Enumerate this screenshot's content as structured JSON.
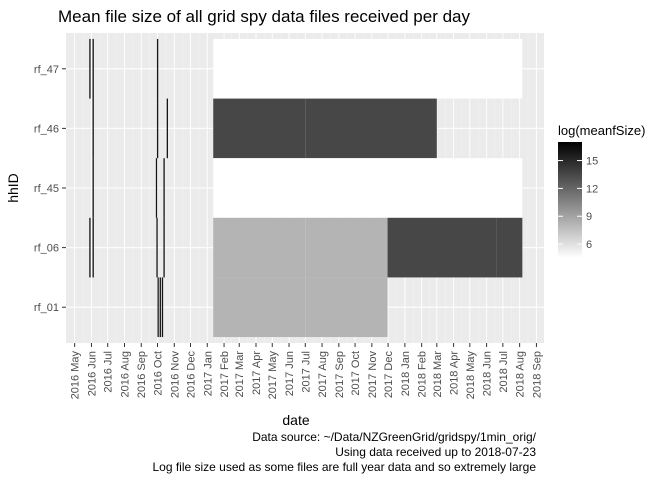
{
  "chart_data": {
    "type": "heatmap",
    "title": "Mean file size of all grid spy data files received per day",
    "xlabel": "date",
    "ylabel": "hhID",
    "categories": [
      "rf_47",
      "rf_46",
      "rf_45",
      "rf_06",
      "rf_01"
    ],
    "xlim": [
      "2016-04-15",
      "2018-09-15"
    ],
    "x_ticks": [
      "2016 May",
      "2016 Jun",
      "2016 Jul",
      "2016 Aug",
      "2016 Sep",
      "2016 Oct",
      "2016 Nov",
      "2016 Dec",
      "2017 Jan",
      "2017 Feb",
      "2017 Mar",
      "2017 Apr",
      "2017 May",
      "2017 Jun",
      "2017 Jul",
      "2017 Aug",
      "2017 Sep",
      "2017 Oct",
      "2017 Nov",
      "2017 Dec",
      "2018 Jan",
      "2018 Feb",
      "2018 Mar",
      "2018 Apr",
      "2018 May",
      "2018 Jun",
      "2018 Jul",
      "2018 Aug",
      "2018 Sep"
    ],
    "legend": {
      "title": "log(meanfSize)",
      "position": "right",
      "range": [
        4.5,
        17
      ],
      "ticks": [
        6,
        9,
        12,
        15
      ],
      "low_color": "#ffffff",
      "high_color": "#000000"
    },
    "grid": true,
    "cells": [
      {
        "hh": "rf_47",
        "start": "2016-05-28",
        "end": "2016-05-29",
        "value": 16
      },
      {
        "hh": "rf_47",
        "start": "2016-06-03",
        "end": "2016-06-04",
        "value": 16
      },
      {
        "hh": "rf_47",
        "start": "2016-09-30",
        "end": "2016-10-01",
        "value": 16
      },
      {
        "hh": "rf_47",
        "start": "2017-01-12",
        "end": "2017-07-01",
        "value": 4.5
      },
      {
        "hh": "rf_47",
        "start": "2017-07-01",
        "end": "2018-08-06",
        "value": 4.5
      },
      {
        "hh": "rf_46",
        "start": "2016-06-03",
        "end": "2016-06-04",
        "value": 16
      },
      {
        "hh": "rf_46",
        "start": "2016-09-30",
        "end": "2016-10-01",
        "value": 16
      },
      {
        "hh": "rf_46",
        "start": "2016-10-18",
        "end": "2016-10-19",
        "value": 16
      },
      {
        "hh": "rf_46",
        "start": "2017-01-12",
        "end": "2017-07-01",
        "value": 13.5
      },
      {
        "hh": "rf_46",
        "start": "2017-07-01",
        "end": "2018-03-01",
        "value": 13.5
      },
      {
        "hh": "rf_45",
        "start": "2016-06-03",
        "end": "2016-06-04",
        "value": 16
      },
      {
        "hh": "rf_45",
        "start": "2016-09-28",
        "end": "2016-09-29",
        "value": 16
      },
      {
        "hh": "rf_45",
        "start": "2016-10-12",
        "end": "2016-10-13",
        "value": 16
      },
      {
        "hh": "rf_45",
        "start": "2017-01-12",
        "end": "2017-07-01",
        "value": 4.5
      },
      {
        "hh": "rf_45",
        "start": "2017-07-01",
        "end": "2018-08-06",
        "value": 4.5
      },
      {
        "hh": "rf_06",
        "start": "2016-05-28",
        "end": "2016-05-29",
        "value": 16
      },
      {
        "hh": "rf_06",
        "start": "2016-06-03",
        "end": "2016-06-04",
        "value": 16
      },
      {
        "hh": "rf_06",
        "start": "2016-09-29",
        "end": "2016-09-30",
        "value": 16
      },
      {
        "hh": "rf_06",
        "start": "2016-10-12",
        "end": "2016-10-13",
        "value": 16
      },
      {
        "hh": "rf_06",
        "start": "2017-01-12",
        "end": "2017-07-01",
        "value": 8.2
      },
      {
        "hh": "rf_06",
        "start": "2017-07-01",
        "end": "2017-11-30",
        "value": 8.2
      },
      {
        "hh": "rf_06",
        "start": "2017-11-30",
        "end": "2018-06-19",
        "value": 13.5
      },
      {
        "hh": "rf_06",
        "start": "2018-06-19",
        "end": "2018-08-06",
        "value": 13.5
      },
      {
        "hh": "rf_01",
        "start": "2016-10-01",
        "end": "2016-10-02",
        "value": 16
      },
      {
        "hh": "rf_01",
        "start": "2016-10-05",
        "end": "2016-10-06",
        "value": 16
      },
      {
        "hh": "rf_01",
        "start": "2016-10-09",
        "end": "2016-10-10",
        "value": 16
      },
      {
        "hh": "rf_01",
        "start": "2017-01-12",
        "end": "2017-07-01",
        "value": 8.2
      },
      {
        "hh": "rf_01",
        "start": "2017-07-01",
        "end": "2017-11-30",
        "value": 8.2
      }
    ],
    "caption": [
      "Data source: ~/Data/NZGreenGrid/gridspy/1min_orig/",
      "Using data received up to 2018-07-23",
      "Log file size used as some files are full year data and so extremely large"
    ]
  }
}
